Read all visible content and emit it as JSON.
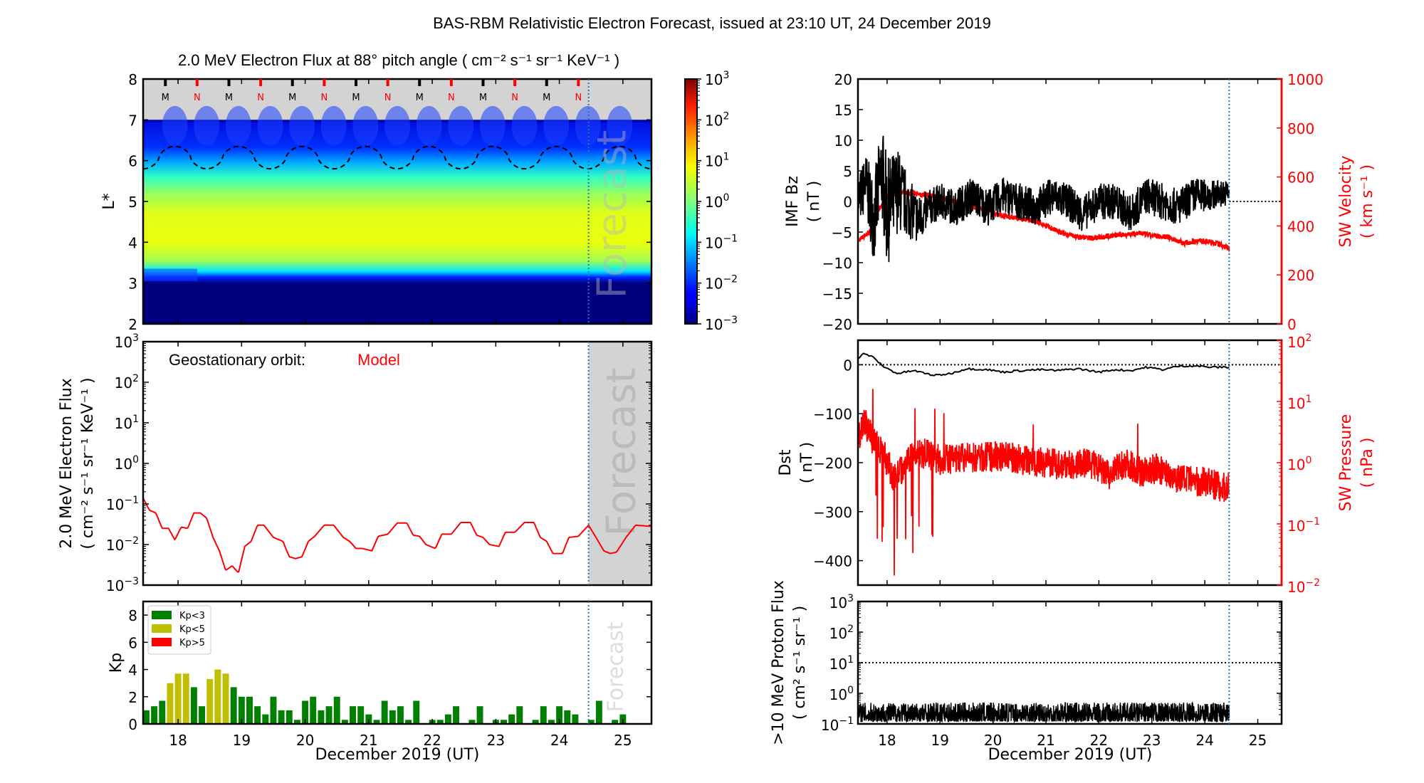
{
  "figure": {
    "title": "BAS-RBM Relativistic Electron Forecast, issued at 23:10 UT, 24 December 2019",
    "forecast_label": "Forecast",
    "xlabel": "December 2019 (UT)"
  },
  "colors": {
    "model": "#ff0000",
    "divider": "#1f77b4",
    "forecast_bg": "#d3d3d3",
    "kp_low": "#008000",
    "kp_mid": "#bfbf00",
    "kp_high": "#ff0000",
    "sw": "#ff0000",
    "black": "#000000"
  },
  "chart_data": [
    {
      "id": "flux-heatmap",
      "type": "heatmap",
      "title": "2.0 MeV Electron Flux at 88° pitch angle ( cm⁻² s⁻¹ sr⁻¹ KeV⁻¹ )",
      "ylabel": "L*",
      "ylim": [
        2,
        8
      ],
      "yticks": [
        "2",
        "3",
        "4",
        "5",
        "6",
        "7",
        "8"
      ],
      "xlim": [
        17.45,
        25.45
      ],
      "forecast_start": 24.46,
      "colorbar": {
        "scale": "log",
        "range": [
          0.001,
          1000
        ],
        "ticks": [
          "10⁻³",
          "10⁻²",
          "10⁻¹",
          "10⁰",
          "10¹",
          "10²",
          "10³"
        ]
      },
      "profile": {
        "description": "flux vs L*",
        "L": [
          2.0,
          3.0,
          3.2,
          3.5,
          4.0,
          4.5,
          5.0,
          5.5,
          6.0,
          6.5,
          7.0
        ],
        "log_flux": [
          -3,
          -3,
          -1.6,
          0.5,
          1.0,
          0.8,
          0.3,
          -0.8,
          -1.7,
          -2.3,
          -2.6
        ]
      },
      "magnetopause_markers": [
        "M",
        "N",
        "M",
        "N",
        "M",
        "N",
        "M",
        "N",
        "M",
        "N",
        "M",
        "N",
        "M",
        "N"
      ],
      "marker_times": [
        17.8,
        18.3,
        18.8,
        19.3,
        19.8,
        20.3,
        20.8,
        21.3,
        21.8,
        22.3,
        22.8,
        23.3,
        23.8,
        24.3
      ],
      "last_closed_drift_shell": {
        "style": "dashed",
        "min": 5.8,
        "max": 6.35,
        "period_days": 1.0
      }
    },
    {
      "id": "geo-flux",
      "type": "line",
      "annotation_label": "Geostationary orbit:",
      "annotation_value": "Model",
      "ylabel_line1": "2.0 MeV Electron Flux",
      "ylabel_line2": "( cm⁻² s⁻¹ sr⁻¹ KeV⁻¹ )",
      "yscale": "log",
      "ylim": [
        0.001,
        1000
      ],
      "yticks": [
        "10⁻³",
        "10⁻²",
        "10⁻¹",
        "10⁰",
        "10¹",
        "10²",
        "10³"
      ],
      "xlim": [
        17.45,
        25.45
      ],
      "forecast_start": 24.46,
      "x": [
        17.45,
        17.55,
        17.65,
        17.75,
        17.85,
        17.95,
        18.05,
        18.15,
        18.25,
        18.35,
        18.45,
        18.55,
        18.65,
        18.75,
        18.85,
        18.95,
        19.05,
        19.15,
        19.25,
        19.35,
        19.5,
        19.65,
        19.75,
        19.85,
        19.95,
        20.05,
        20.15,
        20.3,
        20.45,
        20.6,
        20.7,
        20.8,
        20.9,
        21.05,
        21.15,
        21.3,
        21.45,
        21.6,
        21.7,
        21.8,
        21.9,
        22.05,
        22.15,
        22.3,
        22.45,
        22.6,
        22.7,
        22.8,
        22.9,
        23.05,
        23.15,
        23.3,
        23.45,
        23.6,
        23.7,
        23.8,
        23.9,
        24.05,
        24.15,
        24.3,
        24.46,
        24.6,
        24.7,
        24.8,
        24.9,
        25.05,
        25.2,
        25.45
      ],
      "y": [
        0.14,
        0.07,
        0.06,
        0.025,
        0.025,
        0.013,
        0.027,
        0.025,
        0.06,
        0.06,
        0.045,
        0.015,
        0.007,
        0.0023,
        0.003,
        0.002,
        0.009,
        0.012,
        0.03,
        0.03,
        0.015,
        0.012,
        0.005,
        0.0045,
        0.005,
        0.012,
        0.016,
        0.03,
        0.03,
        0.015,
        0.012,
        0.008,
        0.008,
        0.007,
        0.016,
        0.018,
        0.034,
        0.034,
        0.017,
        0.016,
        0.01,
        0.008,
        0.018,
        0.018,
        0.035,
        0.035,
        0.017,
        0.015,
        0.01,
        0.009,
        0.02,
        0.02,
        0.035,
        0.035,
        0.015,
        0.012,
        0.006,
        0.006,
        0.015,
        0.016,
        0.03,
        0.013,
        0.007,
        0.006,
        0.0065,
        0.015,
        0.03,
        0.028
      ]
    },
    {
      "id": "kp",
      "type": "bar",
      "ylabel": "Kp",
      "ylim": [
        0,
        9
      ],
      "yticks": [
        "0",
        "2",
        "4",
        "6",
        "8"
      ],
      "xlim": [
        17.45,
        25.45
      ],
      "xticks": [
        "18",
        "19",
        "20",
        "21",
        "22",
        "23",
        "24",
        "25"
      ],
      "xlabel": "December 2019 (UT)",
      "forecast_start": 24.46,
      "legend": [
        {
          "label": "Kp<3",
          "color": "#008000"
        },
        {
          "label": "Kp<5",
          "color": "#bfbf00"
        },
        {
          "label": "Kp>5",
          "color": "#ff0000"
        }
      ],
      "legend_position": "top-left",
      "bar_start": 17.5,
      "bar_step_days": 0.125,
      "values": [
        1.0,
        1.3,
        1.7,
        3.0,
        3.7,
        3.7,
        2.7,
        1.3,
        3.3,
        4.0,
        3.7,
        2.7,
        2.0,
        2.0,
        1.3,
        0.7,
        2.0,
        1.0,
        1.0,
        0.3,
        1.7,
        2.0,
        1.0,
        1.3,
        2.0,
        0.3,
        1.3,
        1.3,
        0.7,
        0.3,
        1.7,
        1.0,
        1.3,
        0.3,
        1.7,
        0,
        0.3,
        0.3,
        0.7,
        1.3,
        0,
        0.3,
        1.3,
        0,
        0.3,
        0.3,
        0.7,
        1.3,
        0,
        0.3,
        1.3,
        0.3,
        1.3,
        1.0,
        0.7,
        0,
        0.3,
        1.7,
        0,
        0.3,
        0.7,
        0,
        0,
        0
      ]
    },
    {
      "id": "imf-sw",
      "type": "line",
      "ylabel_line1": "IMF Bz",
      "ylabel_line2": "( nT )",
      "ylim": [
        -20,
        20
      ],
      "yticks": [
        "−20",
        "−15",
        "−10",
        "−5",
        "0",
        "5",
        "10",
        "15",
        "20"
      ],
      "y2label_line1": "SW Velocity",
      "y2label_line2": "( km s⁻¹ )",
      "y2lim": [
        0,
        1000
      ],
      "y2ticks": [
        "0",
        "200",
        "400",
        "600",
        "800",
        "1000"
      ],
      "xlim": [
        17.45,
        25.45
      ],
      "forecast_start": 24.46,
      "series": [
        {
          "name": "IMF Bz",
          "color": "#000000",
          "x": [
            17.45,
            17.6,
            17.75,
            17.9,
            18.0,
            18.2,
            18.4,
            18.6,
            18.8,
            19.0,
            19.3,
            19.6,
            19.9,
            20.2,
            20.5,
            20.8,
            21.1,
            21.4,
            21.7,
            22.0,
            22.3,
            22.6,
            22.9,
            23.2,
            23.5,
            23.8,
            24.1,
            24.46
          ],
          "y": [
            0,
            3,
            -3,
            5,
            -2,
            2,
            -1,
            -3,
            -1,
            0,
            -1,
            1,
            -1,
            1,
            0,
            -1,
            1,
            0,
            -2,
            0,
            0,
            -2,
            1,
            0,
            -1,
            1,
            1,
            1.5
          ],
          "amp": [
            4,
            5,
            7,
            8,
            9,
            7,
            5,
            4,
            3,
            3,
            3,
            3,
            3,
            3,
            3,
            3,
            3,
            3,
            3,
            3,
            3,
            3,
            3,
            3,
            3,
            3,
            2.5,
            2
          ]
        },
        {
          "name": "SW Velocity",
          "color": "#ff0000",
          "x": [
            17.45,
            17.7,
            17.85,
            18.0,
            18.3,
            18.6,
            19.0,
            19.3,
            19.6,
            19.9,
            20.2,
            20.5,
            20.8,
            21.0,
            21.3,
            21.6,
            21.9,
            22.2,
            22.5,
            22.8,
            23.0,
            23.3,
            23.6,
            23.9,
            24.2,
            24.46
          ],
          "y": [
            340,
            380,
            470,
            520,
            540,
            530,
            520,
            500,
            480,
            460,
            440,
            430,
            420,
            400,
            370,
            355,
            350,
            360,
            365,
            370,
            360,
            355,
            330,
            340,
            330,
            310
          ]
        }
      ]
    },
    {
      "id": "dst-pressure",
      "type": "line",
      "ylabel_line1": "Dst",
      "ylabel_line2": "( nT )",
      "ylim": [
        -450,
        50
      ],
      "yticks": [
        "−400",
        "−300",
        "−200",
        "−100",
        "0"
      ],
      "y2label_line1": "SW Pressure",
      "y2label_line2": "( nPa )",
      "y2scale": "log",
      "y2lim": [
        0.01,
        100
      ],
      "y2ticks": [
        "10⁻²",
        "10⁻¹",
        "10⁰",
        "10¹",
        "10²"
      ],
      "xlim": [
        17.45,
        25.45
      ],
      "forecast_start": 24.46,
      "series": [
        {
          "name": "Dst",
          "color": "#000000",
          "x": [
            17.45,
            17.55,
            17.7,
            17.95,
            18.2,
            18.5,
            18.9,
            19.2,
            19.5,
            19.9,
            20.2,
            20.5,
            20.9,
            21.2,
            21.6,
            22.0,
            22.3,
            22.6,
            22.9,
            23.2,
            23.5,
            23.8,
            24.1,
            24.46
          ],
          "y": [
            12,
            22,
            18,
            -5,
            -18,
            -12,
            -22,
            -18,
            -8,
            -10,
            -15,
            -12,
            -10,
            -12,
            -8,
            -15,
            -10,
            -12,
            -5,
            -10,
            -3,
            -2,
            -5,
            -5
          ]
        },
        {
          "name": "SW Pressure",
          "color": "#ff0000",
          "x": [
            17.45,
            17.55,
            17.7,
            17.9,
            18.1,
            18.3,
            18.6,
            19.0,
            19.4,
            19.8,
            20.2,
            20.6,
            21.0,
            21.4,
            21.8,
            22.2,
            22.5,
            22.8,
            23.1,
            23.4,
            23.7,
            24.0,
            24.3,
            24.46
          ],
          "y": [
            2.0,
            5.0,
            2.5,
            1.5,
            0.6,
            0.8,
            1.5,
            1.1,
            1.2,
            1.2,
            1.3,
            1.1,
            1.0,
            0.9,
            1.0,
            0.6,
            1.0,
            0.7,
            0.8,
            0.6,
            0.5,
            0.5,
            0.4,
            0.4
          ]
        }
      ]
    },
    {
      "id": "proton-flux",
      "type": "line",
      "ylabel_line1": ">10 MeV Proton Flux",
      "ylabel_line2": "( cm² s⁻¹ sr⁻¹ )",
      "yscale": "log",
      "ylim": [
        0.1,
        1000
      ],
      "yticks": [
        "10⁻¹",
        "10⁰",
        "10¹",
        "10²",
        "10³"
      ],
      "threshold": 10,
      "xlim": [
        17.45,
        25.45
      ],
      "xticks": [
        "18",
        "19",
        "20",
        "21",
        "22",
        "23",
        "24",
        "25"
      ],
      "xlabel": "December 2019 (UT)",
      "forecast_start": 24.46,
      "series": [
        {
          "name": "Proton flux",
          "color": "#000000",
          "baseline": 0.2,
          "range": [
            0.12,
            0.5
          ]
        }
      ]
    }
  ]
}
